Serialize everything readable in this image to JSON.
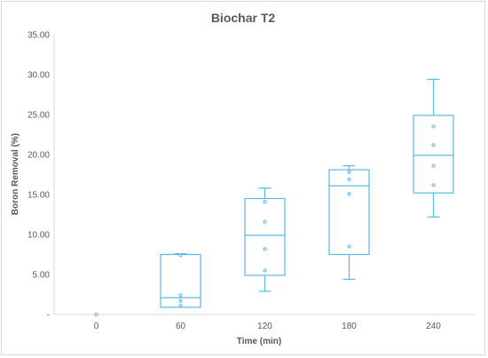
{
  "chart_data": {
    "type": "box",
    "title": "Biochar T2",
    "xlabel": "Time (min)",
    "ylabel": "Boron Removal (%)",
    "categories": [
      "0",
      "60",
      "120",
      "180",
      "240"
    ],
    "y_ticks": [
      "-",
      "5.00",
      "10.00",
      "15.00",
      "20.00",
      "25.00",
      "30.00",
      "35.00"
    ],
    "ylim": [
      0,
      35
    ],
    "grid": false,
    "legend": "none",
    "colors": {
      "box": "#5bb8e6",
      "axis": "#d9d9d9",
      "text": "#595959"
    },
    "boxes": [
      {
        "category": "0",
        "min": 0,
        "q1": 0,
        "median": 0,
        "q3": 0,
        "max": 0,
        "points": [
          0
        ]
      },
      {
        "category": "60",
        "min": 0.9,
        "q1": 0.9,
        "median": 2.1,
        "q3": 7.5,
        "max": 7.6,
        "points": [
          1.1,
          1.7,
          2.4,
          7.4
        ]
      },
      {
        "category": "120",
        "min": 2.9,
        "q1": 4.9,
        "median": 9.9,
        "q3": 14.5,
        "max": 15.8,
        "points": [
          5.5,
          8.2,
          11.6,
          14.1
        ]
      },
      {
        "category": "180",
        "min": 4.4,
        "q1": 7.5,
        "median": 16.1,
        "q3": 18.1,
        "max": 18.6,
        "points": [
          8.5,
          15.1,
          16.9,
          17.8
        ]
      },
      {
        "category": "240",
        "min": 12.2,
        "q1": 15.2,
        "median": 19.9,
        "q3": 24.9,
        "max": 29.4,
        "points": [
          16.2,
          18.6,
          21.2,
          23.5
        ]
      }
    ]
  }
}
